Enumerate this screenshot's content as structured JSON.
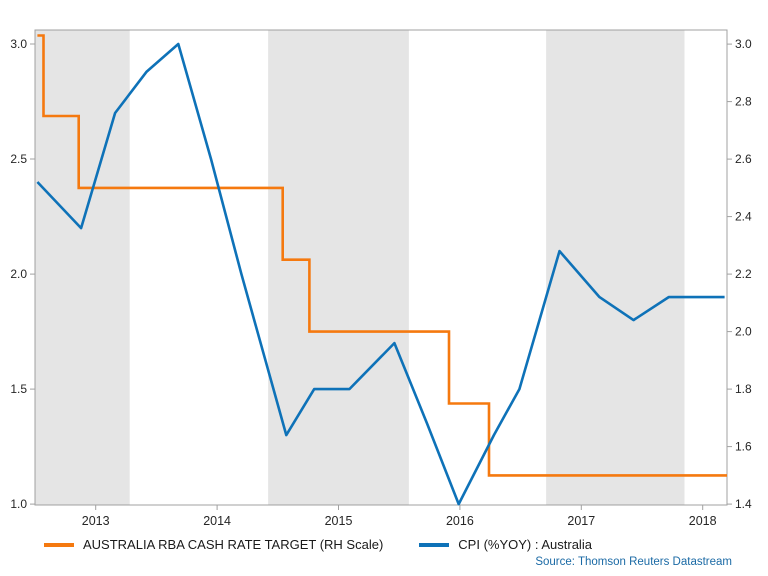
{
  "chart": {
    "legend": [
      {
        "label": "AUSTRALIA RBA CASH RATE TARGET (RH Scale)",
        "color": "#f5790f"
      },
      {
        "label": "CPI (%YOY) : Australia",
        "color": "#0e72b8"
      }
    ],
    "source_note": "Source: Thomson Reuters Datastream",
    "colors": {
      "cash_rate": "#f5790f",
      "cpi": "#0e72b8",
      "band": "#e5e5e5",
      "frame": "#a0a0a0",
      "tick_text": "#262626",
      "source_text": "#1b6aa5",
      "background": "#ffffff"
    }
  },
  "chart_data": {
    "type": "line",
    "title": "",
    "x_range": [
      2012.5,
      2018.2
    ],
    "x_ticks": [
      "2013",
      "2014",
      "2015",
      "2016",
      "2017",
      "2018"
    ],
    "left_axis": {
      "ticks": [
        "1.0",
        "1.5",
        "2.0",
        "2.5",
        "3.0"
      ],
      "domain": [
        0.996,
        3.061
      ],
      "series": "CPI (%YOY) : Australia"
    },
    "right_axis": {
      "ticks": [
        "1.4",
        "1.6",
        "1.8",
        "2.0",
        "2.2",
        "2.4",
        "2.6",
        "2.8",
        "3.0"
      ],
      "domain": [
        1.397,
        3.049
      ],
      "series": "AUSTRALIA RBA CASH RATE TARGET (RH Scale)"
    },
    "shaded_bands_years": [
      [
        2012.5,
        2013.28
      ],
      [
        2014.42,
        2015.58
      ],
      [
        2016.71,
        2017.85
      ]
    ],
    "series": [
      {
        "name": "AUSTRALIA RBA CASH RATE TARGET (RH Scale)",
        "axis": "right",
        "line_type": "step",
        "color": "#f5790f",
        "points": [
          [
            2012.52,
            3.03
          ],
          [
            2012.57,
            2.75
          ],
          [
            2012.86,
            2.5
          ],
          [
            2014.54,
            2.25
          ],
          [
            2014.76,
            2.0
          ],
          [
            2015.91,
            1.75
          ],
          [
            2016.24,
            1.5
          ],
          [
            2018.2,
            1.5
          ]
        ]
      },
      {
        "name": "CPI (%YOY) : Australia",
        "axis": "left",
        "line_type": "line",
        "color": "#0e72b8",
        "points": [
          [
            2012.52,
            2.4
          ],
          [
            2012.88,
            2.2
          ],
          [
            2013.16,
            2.7
          ],
          [
            2013.42,
            2.88
          ],
          [
            2013.68,
            3.0
          ],
          [
            2013.95,
            2.5
          ],
          [
            2014.2,
            2.0
          ],
          [
            2014.57,
            1.3
          ],
          [
            2014.8,
            1.5
          ],
          [
            2015.09,
            1.5
          ],
          [
            2015.46,
            1.7
          ],
          [
            2015.73,
            1.35
          ],
          [
            2015.99,
            1.0
          ],
          [
            2016.28,
            1.3
          ],
          [
            2016.49,
            1.5
          ],
          [
            2016.82,
            2.1
          ],
          [
            2017.15,
            1.9
          ],
          [
            2017.43,
            1.8
          ],
          [
            2017.72,
            1.9
          ],
          [
            2018.18,
            1.9
          ]
        ]
      }
    ]
  }
}
